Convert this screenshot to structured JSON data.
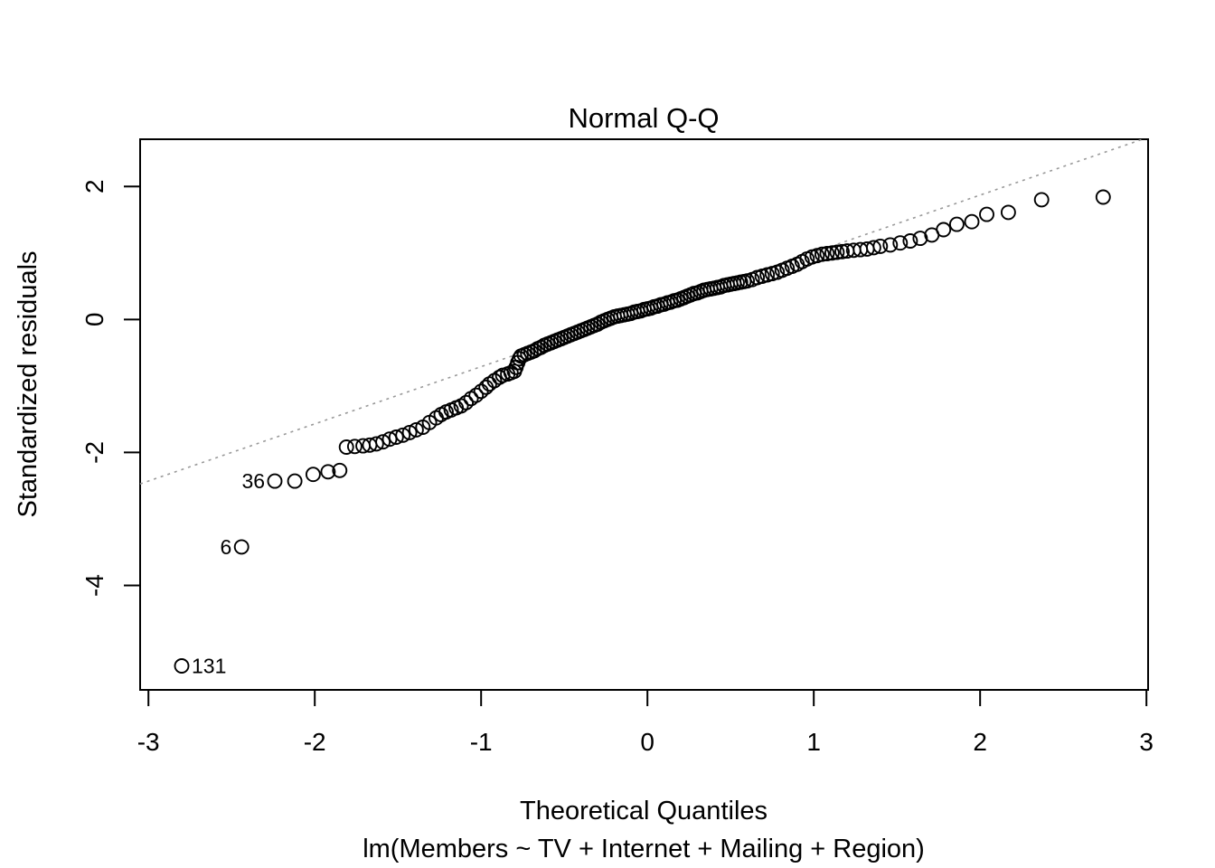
{
  "chart_data": {
    "type": "scatter",
    "title": "Normal Q-Q",
    "xlabel": "Theoretical Quantiles",
    "ylabel": "Standardized residuals",
    "model_subtitle": "lm(Members ~ TV + Internet + Mailing + Region)",
    "xlim": [
      -3.05,
      3.01
    ],
    "ylim": [
      -5.57,
      2.71
    ],
    "x_ticks": [
      -3,
      -2,
      -1,
      0,
      1,
      2,
      3
    ],
    "y_ticks": [
      2,
      0,
      -2,
      -4
    ],
    "grid": false,
    "legend": null,
    "point_style": {
      "shape": "open-circle",
      "color": "#000000",
      "radius_px": 7.5
    },
    "reference_line": {
      "style": "dotted",
      "slope": 0.86,
      "intercept": 0.15,
      "color": "#999999"
    },
    "labeled_points": [
      {
        "label": "131",
        "x": -2.8,
        "y": -5.21,
        "side": "right"
      },
      {
        "label": "6",
        "x": -2.44,
        "y": -3.42,
        "side": "left"
      },
      {
        "label": "36",
        "x": -2.24,
        "y": -2.43,
        "side": "left"
      }
    ],
    "points": [
      [
        -2.8,
        -5.21
      ],
      [
        -2.44,
        -3.42
      ],
      [
        -2.24,
        -2.43
      ],
      [
        -2.12,
        -2.43
      ],
      [
        -2.01,
        -2.33
      ],
      [
        -1.92,
        -2.29
      ],
      [
        -1.85,
        -2.27
      ],
      [
        -1.81,
        -1.92
      ],
      [
        -1.76,
        -1.91
      ],
      [
        -1.71,
        -1.9
      ],
      [
        -1.67,
        -1.89
      ],
      [
        -1.63,
        -1.87
      ],
      [
        -1.59,
        -1.84
      ],
      [
        -1.55,
        -1.8
      ],
      [
        -1.51,
        -1.77
      ],
      [
        -1.47,
        -1.74
      ],
      [
        -1.43,
        -1.7
      ],
      [
        -1.39,
        -1.66
      ],
      [
        -1.35,
        -1.62
      ],
      [
        -1.31,
        -1.55
      ],
      [
        -1.27,
        -1.48
      ],
      [
        -1.24,
        -1.43
      ],
      [
        -1.21,
        -1.39
      ],
      [
        -1.18,
        -1.36
      ],
      [
        -1.15,
        -1.33
      ],
      [
        -1.12,
        -1.3
      ],
      [
        -1.09,
        -1.25
      ],
      [
        -1.06,
        -1.19
      ],
      [
        -1.03,
        -1.14
      ],
      [
        -1.0,
        -1.08
      ],
      [
        -0.97,
        -1.02
      ],
      [
        -0.95,
        -0.97
      ],
      [
        -0.92,
        -0.92
      ],
      [
        -0.89,
        -0.87
      ],
      [
        -0.87,
        -0.84
      ],
      [
        -0.84,
        -0.82
      ],
      [
        -0.82,
        -0.8
      ],
      [
        -0.8,
        -0.78
      ],
      [
        -0.79,
        -0.72
      ],
      [
        -0.78,
        -0.65
      ],
      [
        -0.77,
        -0.59
      ],
      [
        -0.76,
        -0.55
      ],
      [
        -0.74,
        -0.53
      ],
      [
        -0.72,
        -0.51
      ],
      [
        -0.7,
        -0.49
      ],
      [
        -0.68,
        -0.47
      ],
      [
        -0.66,
        -0.44
      ],
      [
        -0.64,
        -0.42
      ],
      [
        -0.62,
        -0.39
      ],
      [
        -0.6,
        -0.37
      ],
      [
        -0.58,
        -0.35
      ],
      [
        -0.56,
        -0.33
      ],
      [
        -0.54,
        -0.31
      ],
      [
        -0.52,
        -0.29
      ],
      [
        -0.5,
        -0.27
      ],
      [
        -0.48,
        -0.25
      ],
      [
        -0.46,
        -0.23
      ],
      [
        -0.44,
        -0.21
      ],
      [
        -0.42,
        -0.19
      ],
      [
        -0.4,
        -0.17
      ],
      [
        -0.38,
        -0.15
      ],
      [
        -0.36,
        -0.13
      ],
      [
        -0.34,
        -0.11
      ],
      [
        -0.32,
        -0.09
      ],
      [
        -0.3,
        -0.07
      ],
      [
        -0.28,
        -0.04
      ],
      [
        -0.26,
        -0.02
      ],
      [
        -0.24,
        0.0
      ],
      [
        -0.22,
        0.02
      ],
      [
        -0.2,
        0.04
      ],
      [
        -0.18,
        0.05
      ],
      [
        -0.16,
        0.06
      ],
      [
        -0.14,
        0.07
      ],
      [
        -0.12,
        0.08
      ],
      [
        -0.1,
        0.09
      ],
      [
        -0.08,
        0.11
      ],
      [
        -0.06,
        0.12
      ],
      [
        -0.04,
        0.13
      ],
      [
        -0.02,
        0.15
      ],
      [
        0.0,
        0.16
      ],
      [
        0.02,
        0.17
      ],
      [
        0.04,
        0.19
      ],
      [
        0.06,
        0.2
      ],
      [
        0.08,
        0.22
      ],
      [
        0.1,
        0.23
      ],
      [
        0.12,
        0.25
      ],
      [
        0.14,
        0.26
      ],
      [
        0.16,
        0.28
      ],
      [
        0.18,
        0.29
      ],
      [
        0.2,
        0.31
      ],
      [
        0.22,
        0.33
      ],
      [
        0.24,
        0.35
      ],
      [
        0.26,
        0.37
      ],
      [
        0.28,
        0.39
      ],
      [
        0.3,
        0.4
      ],
      [
        0.32,
        0.42
      ],
      [
        0.34,
        0.44
      ],
      [
        0.36,
        0.45
      ],
      [
        0.38,
        0.46
      ],
      [
        0.4,
        0.47
      ],
      [
        0.42,
        0.48
      ],
      [
        0.44,
        0.49
      ],
      [
        0.46,
        0.51
      ],
      [
        0.48,
        0.52
      ],
      [
        0.5,
        0.53
      ],
      [
        0.52,
        0.54
      ],
      [
        0.54,
        0.55
      ],
      [
        0.56,
        0.56
      ],
      [
        0.58,
        0.57
      ],
      [
        0.6,
        0.58
      ],
      [
        0.63,
        0.6
      ],
      [
        0.66,
        0.63
      ],
      [
        0.69,
        0.65
      ],
      [
        0.72,
        0.67
      ],
      [
        0.75,
        0.69
      ],
      [
        0.78,
        0.71
      ],
      [
        0.81,
        0.74
      ],
      [
        0.84,
        0.77
      ],
      [
        0.87,
        0.8
      ],
      [
        0.9,
        0.83
      ],
      [
        0.93,
        0.87
      ],
      [
        0.96,
        0.91
      ],
      [
        0.99,
        0.94
      ],
      [
        1.02,
        0.96
      ],
      [
        1.05,
        0.98
      ],
      [
        1.08,
        0.99
      ],
      [
        1.11,
        1.0
      ],
      [
        1.14,
        1.01
      ],
      [
        1.17,
        1.02
      ],
      [
        1.2,
        1.03
      ],
      [
        1.24,
        1.04
      ],
      [
        1.28,
        1.05
      ],
      [
        1.32,
        1.06
      ],
      [
        1.36,
        1.08
      ],
      [
        1.4,
        1.1
      ],
      [
        1.46,
        1.12
      ],
      [
        1.52,
        1.15
      ],
      [
        1.58,
        1.18
      ],
      [
        1.64,
        1.22
      ],
      [
        1.71,
        1.27
      ],
      [
        1.78,
        1.35
      ],
      [
        1.86,
        1.43
      ],
      [
        1.95,
        1.47
      ],
      [
        2.04,
        1.58
      ],
      [
        2.17,
        1.61
      ],
      [
        2.37,
        1.8
      ],
      [
        2.74,
        1.84
      ]
    ]
  },
  "colors": {
    "foreground": "#000000",
    "background": "#ffffff",
    "reference_line": "#999999"
  }
}
